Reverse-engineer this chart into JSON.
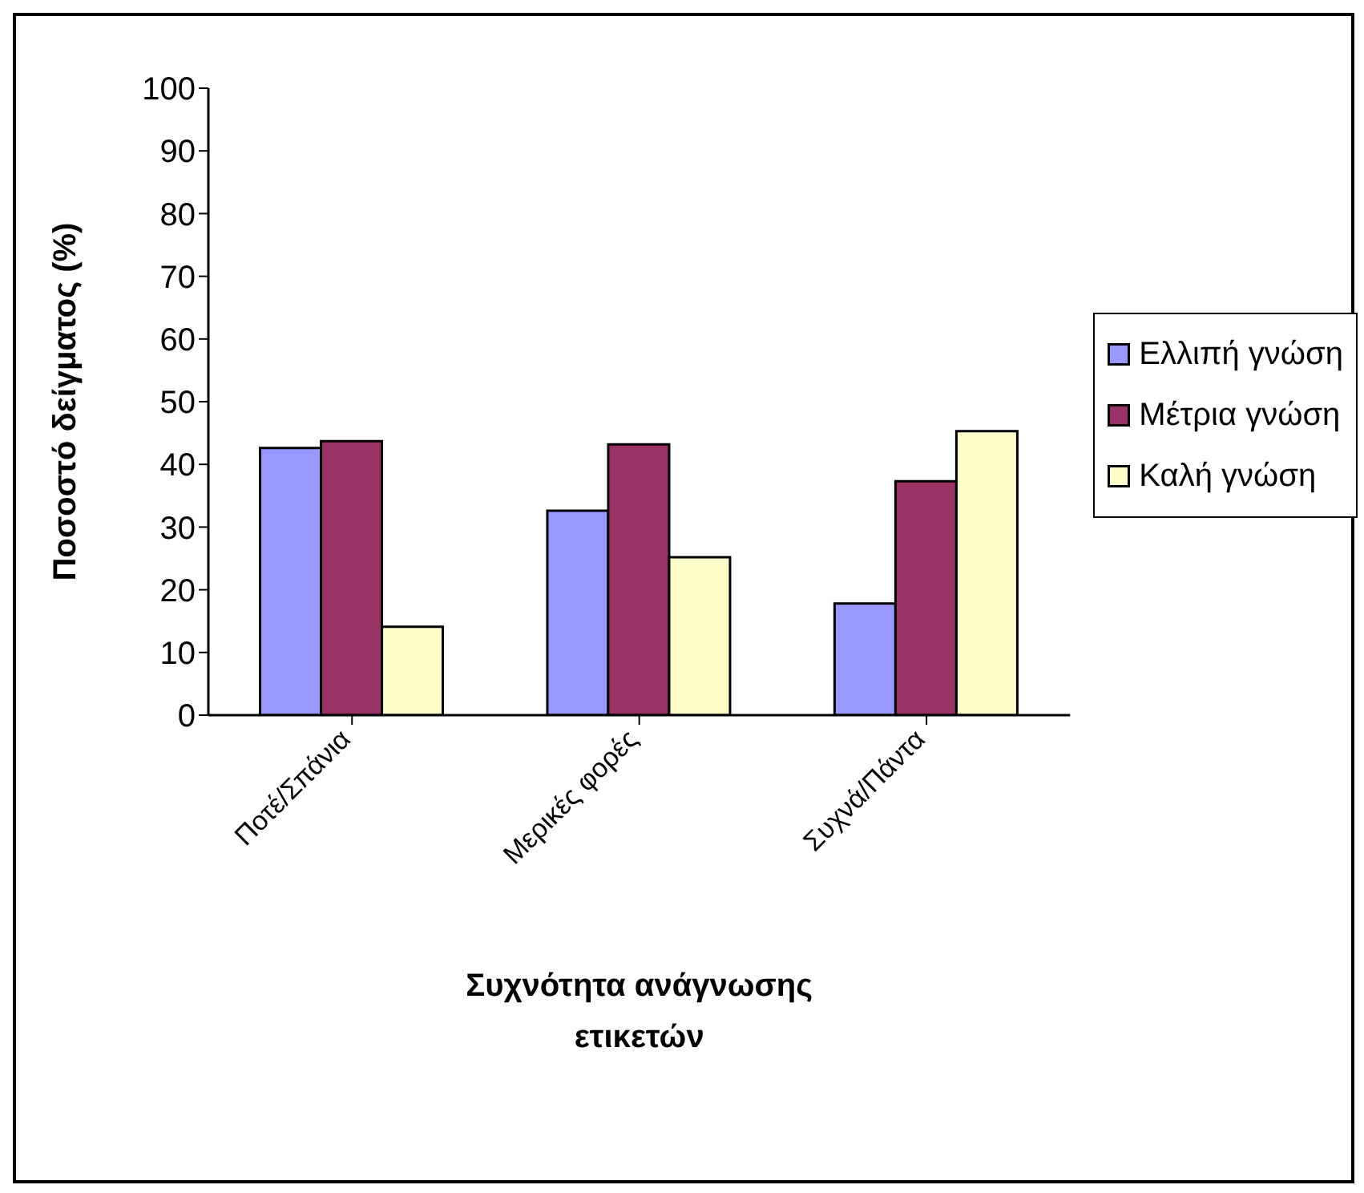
{
  "chart_data": {
    "type": "bar",
    "xlabel": "Συχνότητα ανάγνωσης ετικετών",
    "ylabel": "Ποσοστό δείγματος (%)",
    "categories": [
      "Ποτέ/Σπάνια",
      "Μερικές φορές",
      "Συχνά/Πάντα"
    ],
    "series": [
      {
        "name": "Ελλιπή γνώση",
        "color": "#9999ff",
        "values": [
          42.6,
          32.6,
          17.8
        ]
      },
      {
        "name": "Μέτρια γνώση",
        "color": "#993366",
        "values": [
          43.7,
          43.2,
          37.3
        ]
      },
      {
        "name": "Καλή γνώση",
        "color": "#ffffcc",
        "values": [
          14.1,
          25.2,
          45.3
        ]
      }
    ],
    "ylim": [
      0,
      100
    ],
    "yticks": [
      0,
      10,
      20,
      30,
      40,
      50,
      60,
      70,
      80,
      90,
      100
    ],
    "grid": false,
    "legend": "right"
  }
}
